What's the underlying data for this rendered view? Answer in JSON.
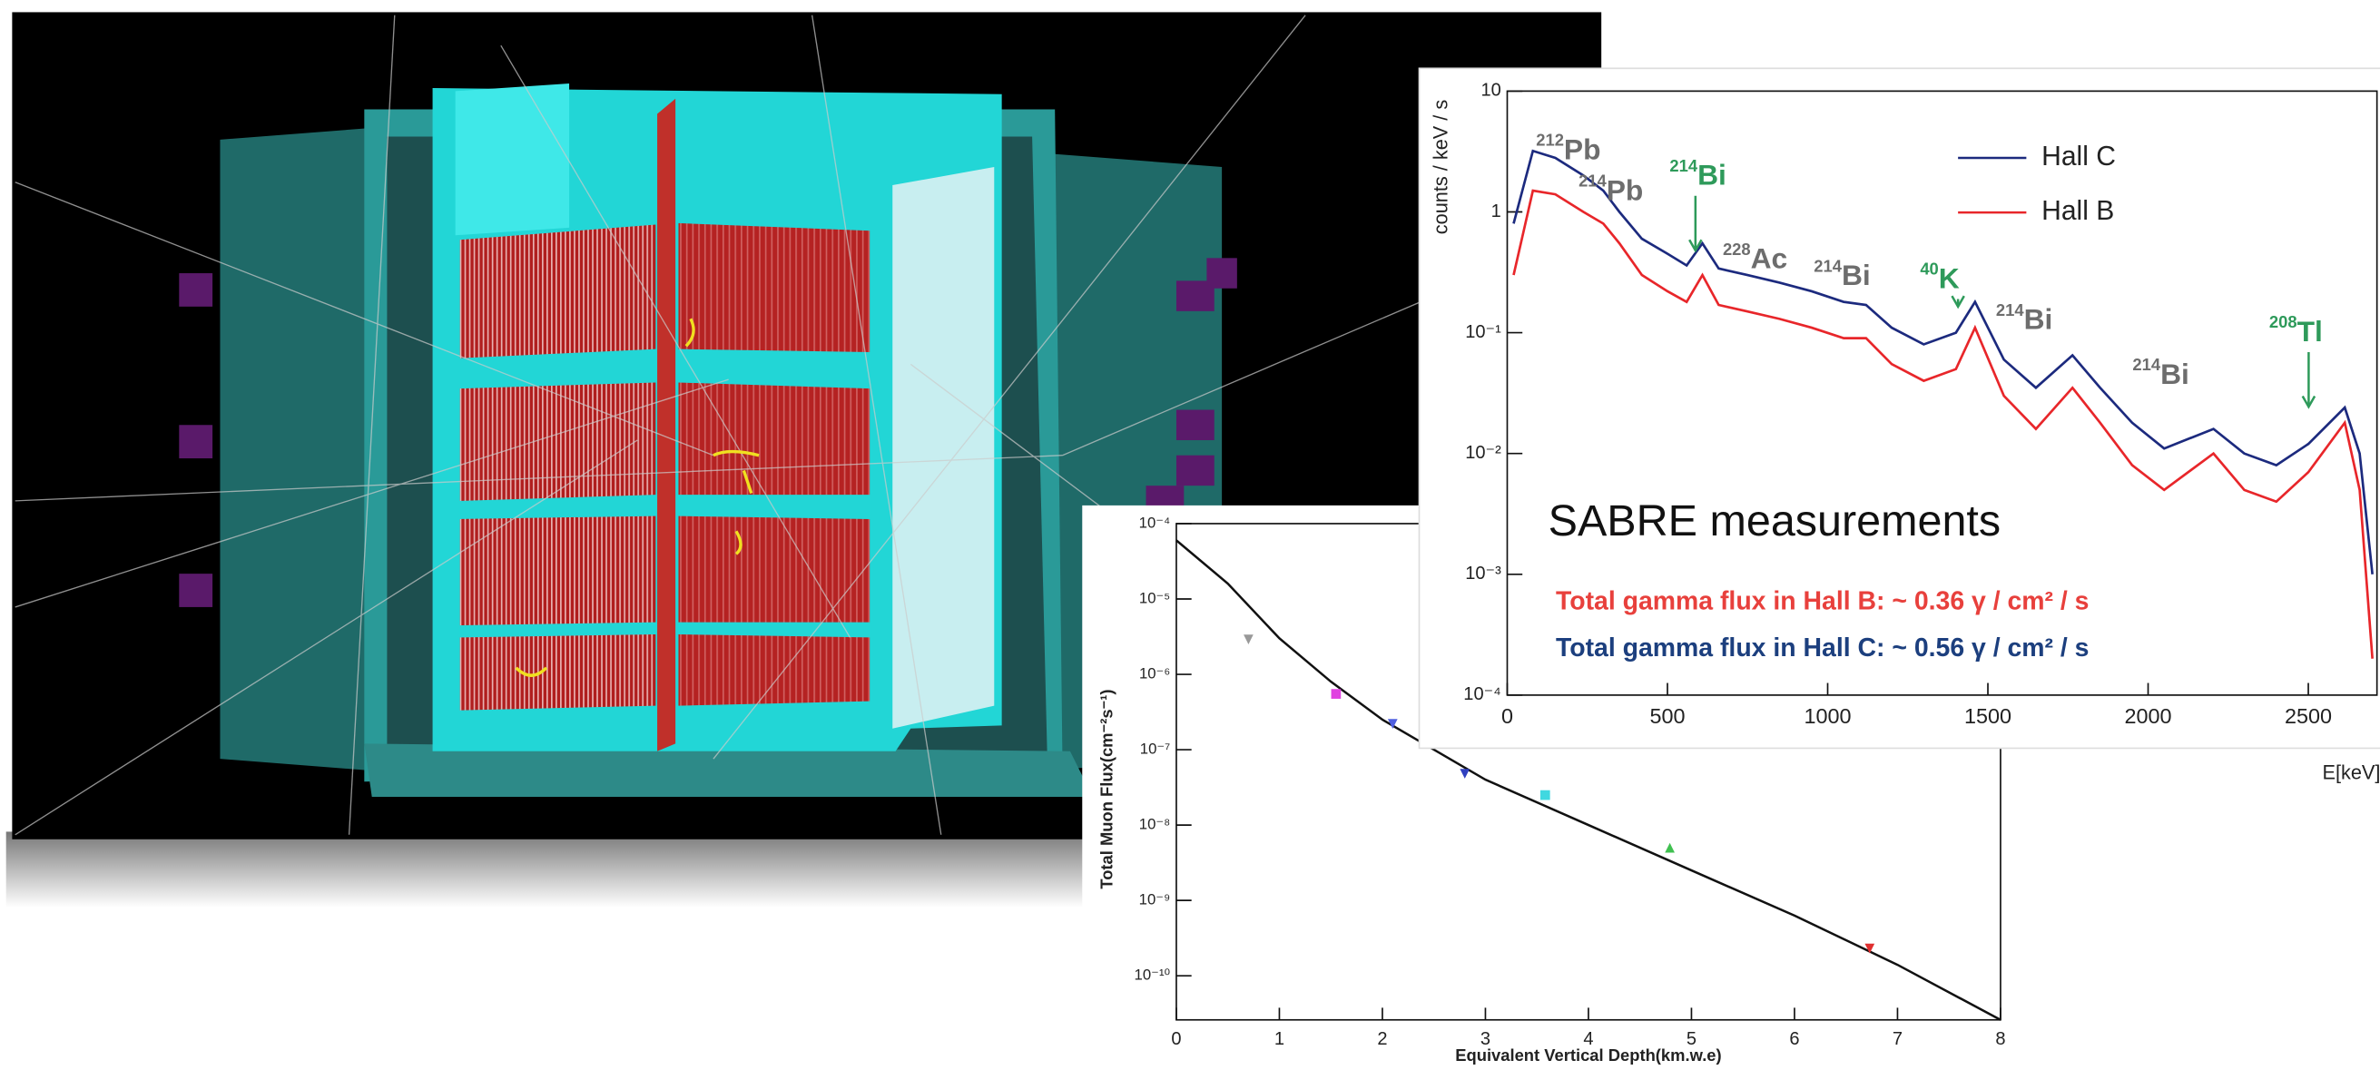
{
  "chart_data": [
    {
      "type": "line",
      "ylabel": "counts / keV / s",
      "xlabel": "E[keV]",
      "yscale": "log",
      "xlim": [
        0,
        2700
      ],
      "ylim": [
        0.0001,
        10
      ],
      "xticks": [
        0,
        500,
        1000,
        1500,
        2000,
        2500
      ],
      "yticks": [
        {
          "value": 0.0001,
          "label": "10⁻⁴"
        },
        {
          "value": 0.001,
          "label": "10⁻³"
        },
        {
          "value": 0.01,
          "label": "10⁻²"
        },
        {
          "value": 0.1,
          "label": "10⁻¹"
        },
        1,
        10
      ],
      "x": [
        20,
        80,
        150,
        238,
        300,
        350,
        420,
        500,
        560,
        609,
        660,
        750,
        850,
        950,
        1050,
        1120,
        1200,
        1300,
        1400,
        1460,
        1550,
        1650,
        1764,
        1850,
        1950,
        2050,
        2204,
        2300,
        2400,
        2500,
        2614,
        2660,
        2700
      ],
      "series": [
        {
          "name": "Hall C",
          "color": "#1c2a7e",
          "values": [
            0.8,
            3.2,
            2.8,
            2.0,
            1.5,
            1.0,
            0.6,
            0.45,
            0.36,
            0.55,
            0.34,
            0.3,
            0.26,
            0.22,
            0.18,
            0.17,
            0.11,
            0.08,
            0.1,
            0.18,
            0.06,
            0.035,
            0.065,
            0.035,
            0.018,
            0.011,
            0.016,
            0.01,
            0.008,
            0.012,
            0.024,
            0.01,
            0.001
          ]
        },
        {
          "name": "Hall B",
          "color": "#e8262a",
          "values": [
            0.3,
            1.5,
            1.4,
            1.0,
            0.8,
            0.55,
            0.3,
            0.22,
            0.18,
            0.3,
            0.17,
            0.15,
            0.13,
            0.11,
            0.09,
            0.09,
            0.055,
            0.04,
            0.05,
            0.11,
            0.03,
            0.016,
            0.035,
            0.018,
            0.008,
            0.005,
            0.01,
            0.005,
            0.004,
            0.007,
            0.018,
            0.005,
            0.0002
          ]
        }
      ],
      "legend": "upper-center",
      "annotations": [
        {
          "mass": "212",
          "element": "Pb",
          "color": "#6d6d6d"
        },
        {
          "mass": "214",
          "element": "Pb",
          "color": "#6d6d6d"
        },
        {
          "mass": "214",
          "element": "Bi",
          "color": "#2e9a5a"
        },
        {
          "mass": "228",
          "element": "Ac",
          "color": "#6d6d6d"
        },
        {
          "mass": "214",
          "element": "Bi",
          "color": "#6d6d6d"
        },
        {
          "mass": "40",
          "element": "K",
          "color": "#2e9a5a"
        },
        {
          "mass": "214",
          "element": "Bi",
          "color": "#6d6d6d"
        },
        {
          "mass": "214",
          "element": "Bi",
          "color": "#6d6d6d"
        },
        {
          "mass": "208",
          "element": "Tl",
          "color": "#2e9a5a"
        }
      ],
      "notes": [
        {
          "text": "SABRE measurements",
          "color": "#111111"
        },
        {
          "text": "Total gamma flux in Hall B: ~ 0.36 γ / cm² / s",
          "color": "#e8403c"
        },
        {
          "text": "Total gamma flux in Hall C: ~ 0.56 γ / cm² / s",
          "color": "#1c3f7e"
        }
      ]
    },
    {
      "type": "scatter",
      "ylabel": "Total Muon Flux(cm⁻²s⁻¹)",
      "xlabel": "Equivalent Vertical Depth(km.w.e)",
      "yscale": "log",
      "xlim": [
        0,
        8
      ],
      "ylim": [
        2.6e-11,
        0.0001
      ],
      "xticks": [
        0,
        1,
        2,
        3,
        4,
        5,
        6,
        7,
        8
      ],
      "yticks": [
        {
          "value": 1e-10,
          "label": "10⁻¹⁰"
        },
        {
          "value": 1e-09,
          "label": "10⁻⁹"
        },
        {
          "value": 1e-08,
          "label": "10⁻⁸"
        },
        {
          "value": 1e-07,
          "label": "10⁻⁷"
        },
        {
          "value": 1e-06,
          "label": "10⁻⁶"
        },
        {
          "value": 1e-05,
          "label": "10⁻⁵"
        },
        {
          "value": 0.0001,
          "label": "10⁻⁴"
        }
      ],
      "series": [
        {
          "mode": "line",
          "color": "#111111",
          "x": [
            0,
            0.5,
            1,
            1.5,
            2,
            3,
            4,
            5,
            6,
            7,
            8
          ],
          "values": [
            6e-05,
            1.6e-05,
            3e-06,
            8e-07,
            2.5e-07,
            4e-08,
            1e-08,
            2.5e-09,
            6.3e-10,
            1.4e-10,
            2.6e-11
          ]
        },
        {
          "mode": "marker",
          "marker": "triangle-down",
          "color": "#999999",
          "x": [
            0.7
          ],
          "values": [
            2.9e-06
          ]
        },
        {
          "mode": "marker",
          "marker": "square",
          "color": "#e040e0",
          "x": [
            1.55
          ],
          "values": [
            5.5e-07
          ]
        },
        {
          "mode": "marker",
          "marker": "triangle-down",
          "color": "#5060e0",
          "x": [
            2.1
          ],
          "values": [
            2.2e-07
          ]
        },
        {
          "mode": "marker",
          "marker": "triangle-down",
          "color": "#3040c0",
          "x": [
            2.8
          ],
          "values": [
            4.8e-08
          ]
        },
        {
          "mode": "marker",
          "marker": "square",
          "color": "#40d8e0",
          "x": [
            3.58
          ],
          "values": [
            2.5e-08
          ]
        },
        {
          "mode": "marker",
          "marker": "triangle-up",
          "color": "#40c050",
          "x": [
            4.79
          ],
          "values": [
            5e-09
          ]
        },
        {
          "mode": "marker",
          "marker": "triangle-down",
          "color": "#e03030",
          "x": [
            6.73
          ],
          "values": [
            2.3e-10
          ]
        }
      ]
    }
  ]
}
